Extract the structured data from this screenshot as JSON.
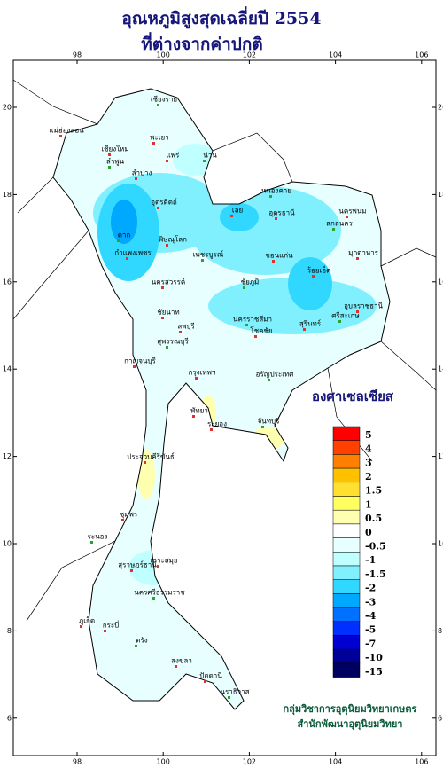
{
  "header": {
    "title": [
      "อุณหภูมิสูงสุดเฉลี่ยปี  2554",
      "ที่ต่างจากค่าปกติ"
    ]
  },
  "map": {
    "lon_ticks": [
      98,
      100,
      102,
      104,
      106
    ],
    "lat_ticks": [
      20,
      18,
      16,
      14,
      12,
      10,
      8,
      6
    ],
    "provinces": [
      "เชียงราย",
      "แม่ฮ่องสอน",
      "เชียงใหม่",
      "ลำพูน",
      "ลำปาง",
      "พะเยา",
      "น่าน",
      "แพร่",
      "อุตรดิตถ์",
      "หนองคาย",
      "อุดรธานี",
      "นครพนม",
      "สกลนคร",
      "มุกดาหาร",
      "เลย",
      "ตาก",
      "กำแพงเพชร",
      "พิษณุโลก",
      "เพชรบูรณ์",
      "ขอนแก่น",
      "นครสวรรค์",
      "ชัยภูมิ",
      "ร้อยเอ็ด",
      "อุบลราชธานี",
      "ศรีสะเกษ",
      "สุรินทร์",
      "ลพบุรี",
      "นครราชสีมา",
      "โชคชัย",
      "ชัยนาท",
      "สุพรรณบุรี",
      "กาญจนบุรี",
      "กรุงเทพฯ",
      "อรัญประเทศ",
      "พัทยา",
      "ระยอง",
      "จันทบุรี",
      "ประจวบคีรีขันธ์",
      "ชุมพร",
      "ระนอง",
      "สุราษฎร์ธานี",
      "เกาะสมุย",
      "นครศรีธรรมราช",
      "ภูเก็ต",
      "กระบี่",
      "ตรัง",
      "สงขลา",
      "ปัตตานี",
      "นราธิวาส"
    ]
  },
  "legend": {
    "title": "องศาเซลเซียส",
    "entries": [
      {
        "label": "5",
        "color": "#ff0000"
      },
      {
        "label": "4",
        "color": "#ff4000"
      },
      {
        "label": "3",
        "color": "#ff8000"
      },
      {
        "label": "2",
        "color": "#ffc000"
      },
      {
        "label": "1.5",
        "color": "#ffe030"
      },
      {
        "label": "1",
        "color": "#ffff60"
      },
      {
        "label": "0.5",
        "color": "#ffffb0"
      },
      {
        "label": "0",
        "color": "#ffffff"
      },
      {
        "label": "-0.5",
        "color": "#e8ffff"
      },
      {
        "label": "-1",
        "color": "#c0ffff"
      },
      {
        "label": "-1.5",
        "color": "#80f0ff"
      },
      {
        "label": "-2",
        "color": "#30d8ff"
      },
      {
        "label": "-3",
        "color": "#00a8ff"
      },
      {
        "label": "-4",
        "color": "#0070ff"
      },
      {
        "label": "-5",
        "color": "#0030ff"
      },
      {
        "label": "-7",
        "color": "#0000d0"
      },
      {
        "label": "-10",
        "color": "#000098"
      },
      {
        "label": "-15",
        "color": "#000060"
      }
    ]
  },
  "credits": [
    "กลุ่มวิชาการอุตุนิยมวิทยาเกษตร",
    "สำนักพัฒนาอุตุนิยมวิทยา"
  ]
}
